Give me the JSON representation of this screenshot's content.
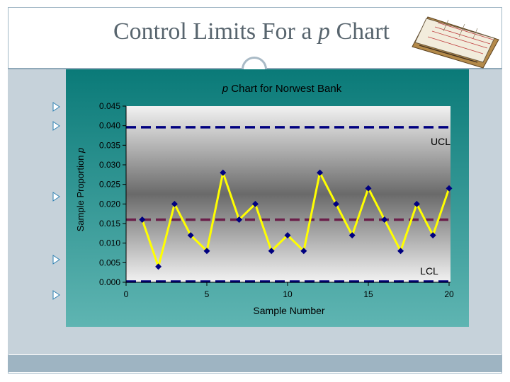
{
  "slide": {
    "title_prefix": "Control Limits For a ",
    "title_italic": "p",
    "title_suffix": " Chart"
  },
  "colors": {
    "line": "#ffff00",
    "marker": "#000080",
    "center_line": "#6b1f4a",
    "limit_lines": "#000080",
    "panel_bg_top": "#0a7a78",
    "panel_bg_bottom": "#5fb5b2"
  },
  "chart_data": {
    "type": "line",
    "title_italic": "p",
    "title_rest": " Chart for Norwest Bank",
    "xlabel": "Sample Number",
    "ylabel_text": "Sample Proportion ",
    "ylabel_italic": "p",
    "xlim": [
      0,
      20
    ],
    "ylim": [
      0,
      0.045
    ],
    "x_ticks": [
      0,
      5,
      10,
      15,
      20
    ],
    "x_tick_labels": [
      "0",
      "5",
      "10",
      "15",
      "20"
    ],
    "y_ticks": [
      0,
      0.005,
      0.01,
      0.015,
      0.02,
      0.025,
      0.03,
      0.035,
      0.04,
      0.045
    ],
    "y_tick_labels": [
      "0.000",
      "0.005",
      "0.010",
      "0.015",
      "0.020",
      "0.025",
      "0.030",
      "0.035",
      "0.040",
      "0.045"
    ],
    "grid": false,
    "series": [
      {
        "x": [
          1,
          2,
          3,
          4,
          5,
          6,
          7,
          8,
          9,
          10,
          11,
          12,
          13,
          14,
          15,
          16,
          17,
          18,
          19,
          20
        ],
        "values": [
          0.016,
          0.004,
          0.02,
          0.012,
          0.008,
          0.028,
          0.016,
          0.02,
          0.008,
          0.012,
          0.008,
          0.028,
          0.02,
          0.012,
          0.024,
          0.016,
          0.008,
          0.02,
          0.012,
          0.024
        ]
      }
    ],
    "control_lines": {
      "ucl": 0.0396,
      "center": 0.016,
      "lcl": 0.0,
      "ucl_label": "UCL",
      "lcl_label": "LCL"
    }
  }
}
